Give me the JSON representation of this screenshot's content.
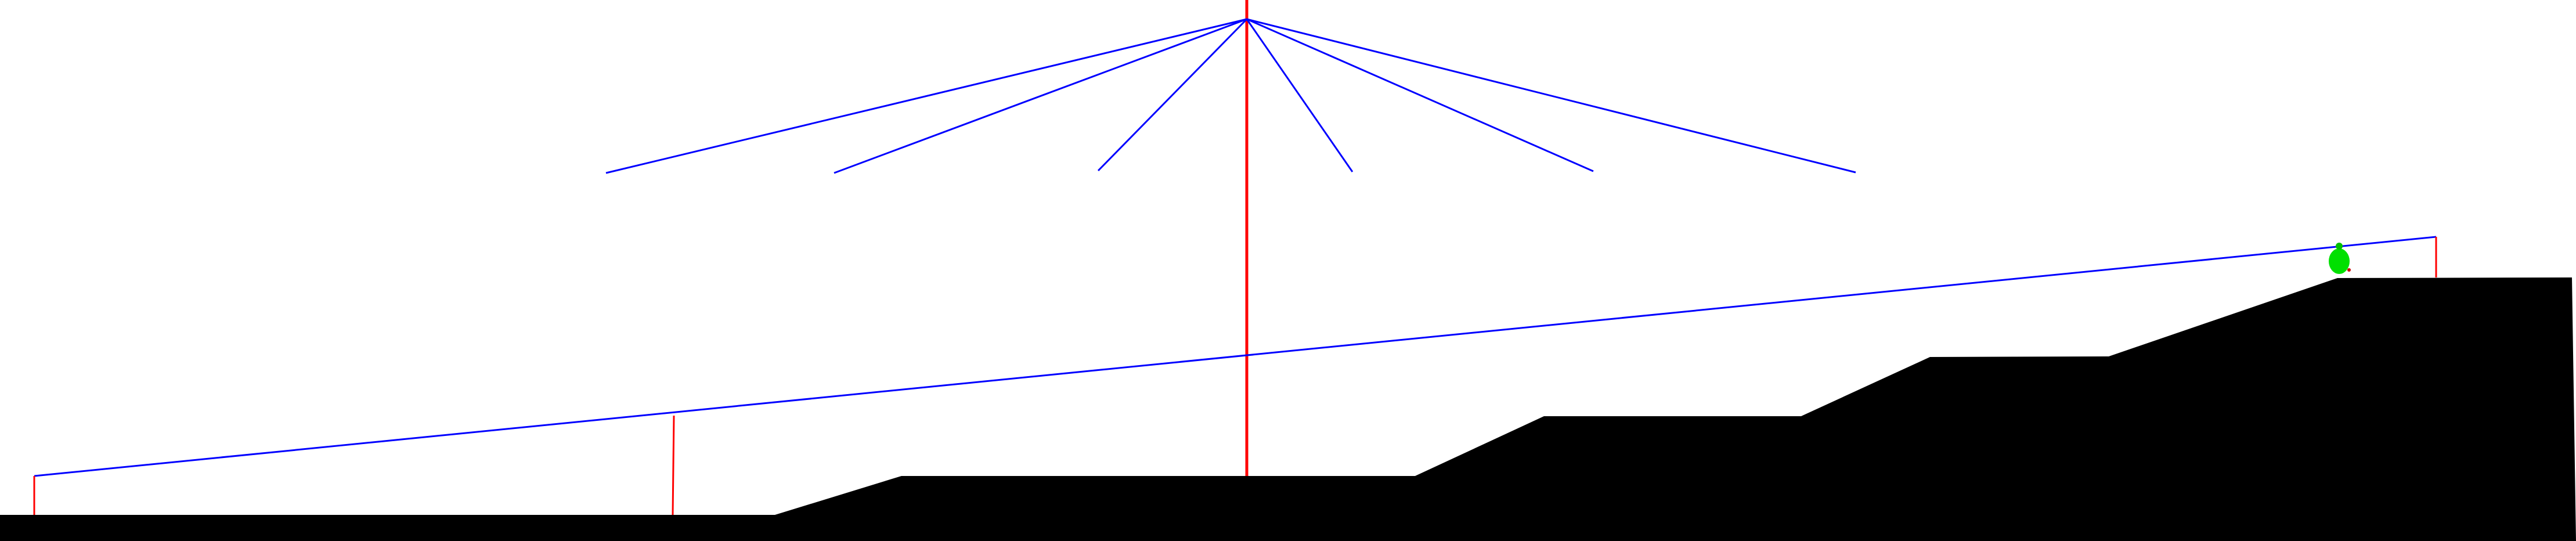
{
  "scene": {
    "background_color": "#ffffff",
    "terrain_color": "#000000",
    "support_post_color": "#ff0000",
    "cable_color": "#0000ff",
    "player_color": "#00e000",
    "player_marker_color": "#cc0000"
  },
  "elements": {
    "terrain": "terrain-silhouette",
    "central_mast": "central-mast",
    "fan_cables": "fan-cables",
    "long_cable": "long-diagonal-cable",
    "player": "player-blob"
  }
}
